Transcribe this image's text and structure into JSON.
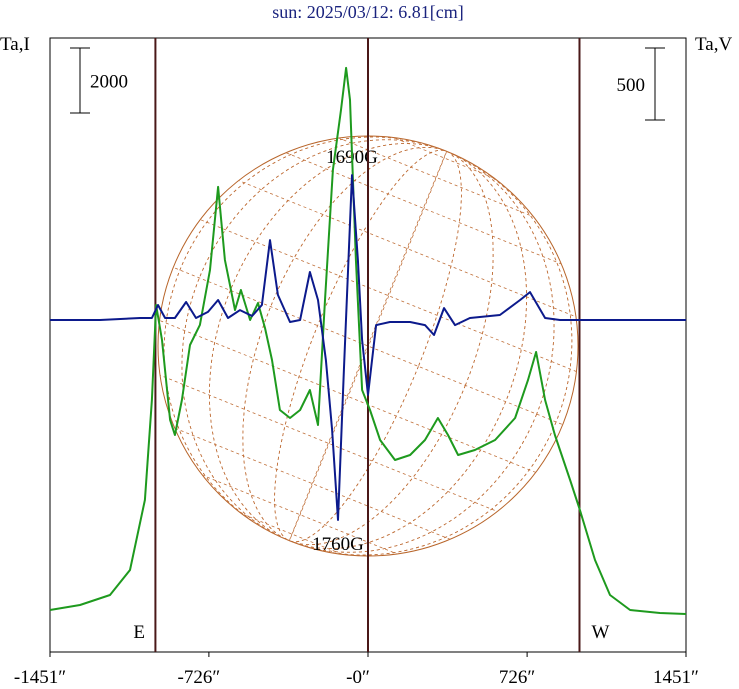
{
  "chart_data": {
    "type": "line",
    "title": "sun: 2025/03/12: 6.81[cm]",
    "y_label": "Ta,I",
    "y2_label": "Ta,V",
    "xlim": [
      -1451,
      1451
    ],
    "xticks": [
      {
        "value": -1451,
        "label": "-1451″"
      },
      {
        "value": -726,
        "label": "-726″"
      },
      {
        "value": 0,
        "label": "-0″"
      },
      {
        "value": 726,
        "label": "726″"
      },
      {
        "value": 1451,
        "label": "1451″"
      }
    ],
    "ylim": [
      0,
      18890
    ],
    "y2lim": [
      -2305,
      1958
    ],
    "scale_bars": [
      {
        "axis": "y",
        "value": 2000
      },
      {
        "axis": "y2",
        "value": 500
      }
    ],
    "vlines": [
      -970,
      0,
      965
    ],
    "limb_labels": [
      "E",
      "W"
    ],
    "annotations": [
      "1690G",
      "1760G"
    ],
    "series": [
      {
        "name": "I",
        "color": "#1e9a1e",
        "x": [
          -1451,
          -1314,
          -1177,
          -1086,
          -1018,
          -986,
          -967,
          -940,
          -903,
          -881,
          -849,
          -812,
          -767,
          -721,
          -684,
          -653,
          -607,
          -580,
          -538,
          -502,
          -470,
          -438,
          -402,
          -356,
          -310,
          -265,
          -228,
          -196,
          -160,
          -123,
          -100,
          -82,
          -55,
          -27,
          9,
          55,
          123,
          192,
          260,
          319,
          365,
          411,
          488,
          580,
          671,
          730,
          767,
          808,
          853,
          922,
          967,
          1036,
          1104,
          1196,
          1332,
          1451
        ],
        "values": [
          1292,
          1446,
          1754,
          2523,
          4677,
          7754,
          10677,
          9600,
          7138,
          6677,
          7754,
          9446,
          10062,
          11754,
          14308,
          12062,
          10523,
          11138,
          10215,
          10738,
          9969,
          8985,
          7446,
          7200,
          7446,
          8062,
          6985,
          10831,
          14831,
          16677,
          17969,
          16985,
          12062,
          8062,
          7446,
          6523,
          5908,
          6062,
          6523,
          7200,
          6677,
          6062,
          6215,
          6523,
          7200,
          8369,
          9231,
          7754,
          6677,
          5292,
          4369,
          2831,
          1754,
          1292,
          1200,
          1169
        ]
      },
      {
        "name": "V",
        "color": "#0c1a8c",
        "axis": "y2",
        "x": [
          -1451,
          -1223,
          -1040,
          -986,
          -958,
          -926,
          -881,
          -830,
          -785,
          -730,
          -684,
          -639,
          -584,
          -529,
          -484,
          -447,
          -411,
          -356,
          -310,
          -265,
          -228,
          -192,
          -164,
          -137,
          -110,
          -73,
          -46,
          -27,
          0,
          37,
          100,
          192,
          260,
          301,
          347,
          397,
          465,
          602,
          694,
          739,
          808,
          876,
          1451
        ],
        "values": [
          0,
          0,
          14,
          14,
          104,
          14,
          14,
          125,
          14,
          56,
          139,
          14,
          69,
          28,
          104,
          555,
          174,
          -14,
          0,
          333,
          139,
          -278,
          -763,
          -1388,
          -347,
          1006,
          416,
          -139,
          -520,
          -35,
          -14,
          -14,
          -35,
          -104,
          83,
          -35,
          14,
          35,
          139,
          194,
          14,
          0,
          0
        ]
      }
    ]
  }
}
